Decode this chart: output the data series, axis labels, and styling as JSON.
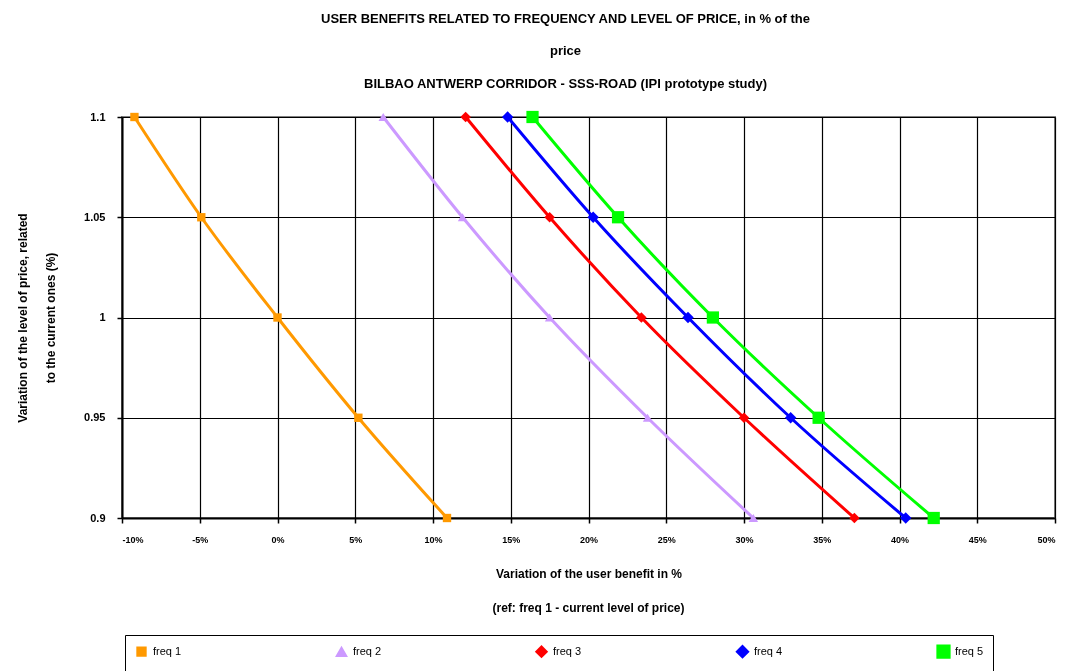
{
  "chart_data": {
    "type": "line",
    "title": "USER BENEFITS RELATED TO FREQUENCY AND LEVEL OF PRICE, in % of the price",
    "subtitle": "BILBAO ANTWERP CORRIDOR - SSS-ROAD (IPI prototype study)",
    "xlabel": "Variation of the user benefit in %",
    "ylabel": "Variation of the level of price, related to the current ones (%)",
    "annotations": [
      "(ref: freq 1 - current level of price)"
    ],
    "series": [
      {
        "name": "freq 1",
        "color": "#ff9900",
        "marker": "square",
        "x": [
          -9.2,
          -4.9,
          0,
          5.2,
          10.9
        ],
        "values": [
          1.1,
          1.05,
          1,
          0.95,
          0.9
        ]
      },
      {
        "name": "freq 2",
        "color": "#cc99ff",
        "marker": "triangle",
        "x": [
          6.8,
          11.9,
          17.5,
          23.8,
          30.6
        ],
        "values": [
          1.1,
          1.05,
          1,
          0.95,
          0.9
        ]
      },
      {
        "name": "freq 3",
        "color": "#ff0000",
        "marker": "diamond",
        "x": [
          12.1,
          17.5,
          23.4,
          30.0,
          37.1
        ],
        "values": [
          1.1,
          1.05,
          1,
          0.95,
          0.9
        ]
      },
      {
        "name": "freq 4",
        "color": "#0000ff",
        "marker": "diamond",
        "x": [
          14.8,
          20.3,
          26.4,
          33.0,
          40.4
        ],
        "values": [
          1.1,
          1.05,
          1,
          0.95,
          0.9
        ]
      },
      {
        "name": "freq 5",
        "color": "#00ff00",
        "marker": "square",
        "x": [
          16.4,
          21.9,
          28.0,
          34.8,
          42.2
        ],
        "values": [
          1.1,
          1.05,
          1,
          0.95,
          0.9
        ]
      }
    ],
    "xlim": [
      -10,
      50
    ],
    "xticks": [
      {
        "value": -10,
        "label": "-10%"
      },
      {
        "value": -5,
        "label": "-5%"
      },
      {
        "value": 0,
        "label": "0%"
      },
      {
        "value": 5,
        "label": "5%"
      },
      {
        "value": 10,
        "label": "10%"
      },
      {
        "value": 15,
        "label": "15%"
      },
      {
        "value": 20,
        "label": "20%"
      },
      {
        "value": 25,
        "label": "25%"
      },
      {
        "value": 30,
        "label": "30%"
      },
      {
        "value": 35,
        "label": "35%"
      },
      {
        "value": 40,
        "label": "40%"
      },
      {
        "value": 45,
        "label": "45%"
      },
      {
        "value": 50,
        "label": "50%"
      }
    ],
    "ylim": [
      0.9,
      1.1
    ],
    "yticks": [
      0.9,
      0.95,
      1,
      1.05,
      1.1
    ],
    "grid": true,
    "legend": "bottom",
    "line_style": "solid"
  }
}
